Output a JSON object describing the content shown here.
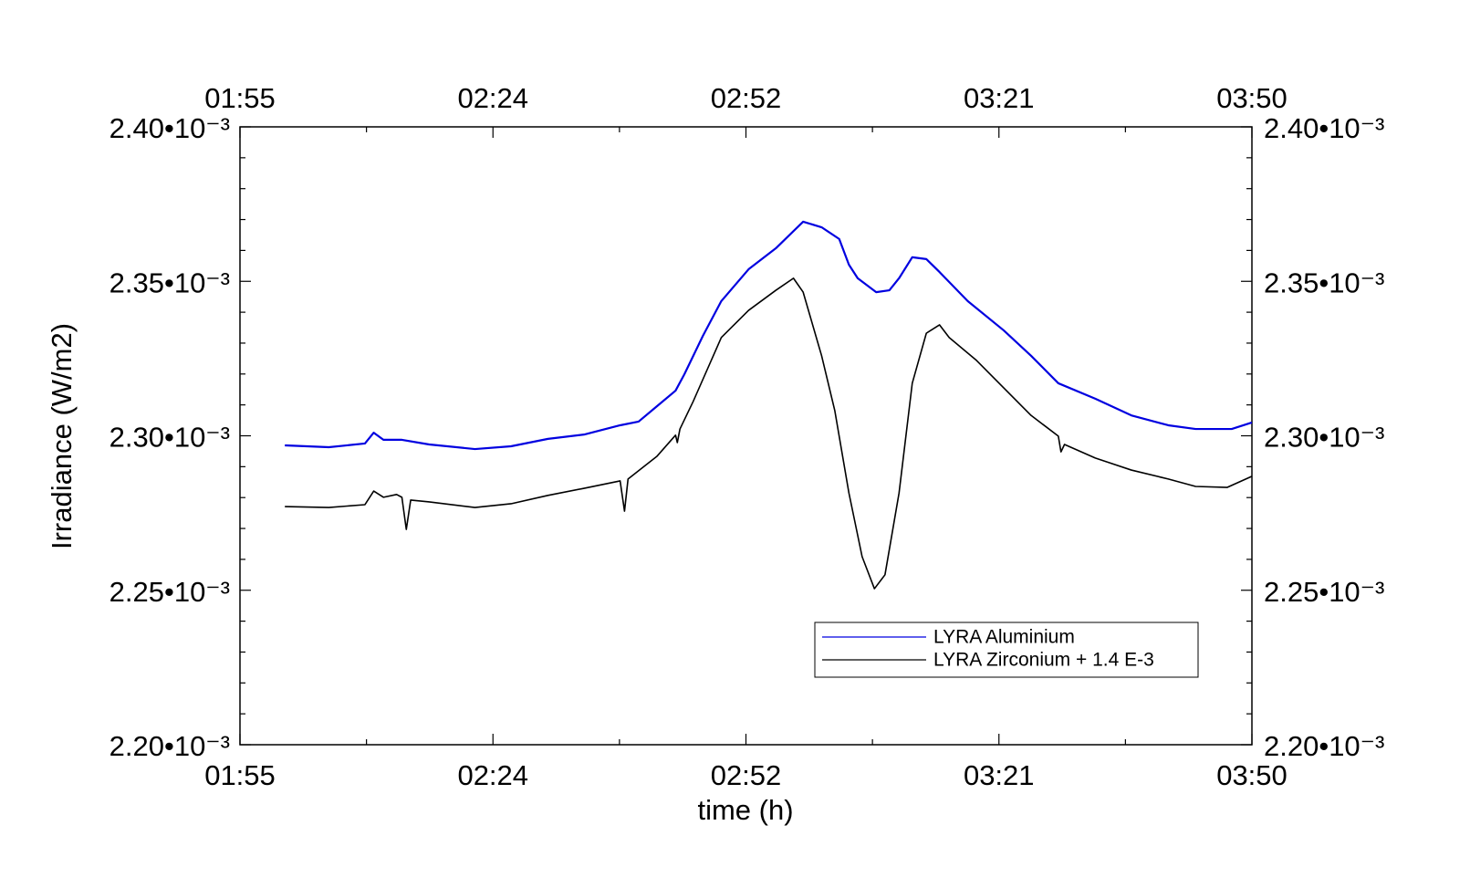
{
  "chart_data": {
    "type": "line",
    "xlabel": "time (h)",
    "ylabel": "Irradiance (W/m2)",
    "xlim": [
      115,
      230
    ],
    "xticks": [
      {
        "value": 115,
        "label": "01:55"
      },
      {
        "value": 143.75,
        "label": "02:24"
      },
      {
        "value": 172.5,
        "label": "02:52"
      },
      {
        "value": 201.25,
        "label": "03:21"
      },
      {
        "value": 230,
        "label": "03:50"
      }
    ],
    "xminorticks": [
      129.375,
      158.125,
      186.875,
      215.625
    ],
    "ylim": [
      0.0022,
      0.0024
    ],
    "yticks": [
      {
        "value": 0.0022,
        "label": "2.20•10⁻³"
      },
      {
        "value": 0.00225,
        "label": "2.25•10⁻³"
      },
      {
        "value": 0.0023,
        "label": "2.30•10⁻³"
      },
      {
        "value": 0.00235,
        "label": "2.35•10⁻³"
      },
      {
        "value": 0.0024,
        "label": "2.40•10⁻³"
      }
    ],
    "yminorticks": [
      0.00221,
      0.00222,
      0.00223,
      0.00224,
      0.00226,
      0.00227,
      0.00228,
      0.00229,
      0.00231,
      0.00232,
      0.00233,
      0.00234,
      0.00236,
      0.00237,
      0.00238,
      0.00239
    ],
    "grid": false,
    "legend": "lower right",
    "series": [
      {
        "name": "LYRA Aluminium",
        "color": "#0000e0",
        "x": [
          120.1,
          125.1,
          129.2,
          130.2,
          131.3,
          133.4,
          136.5,
          141.7,
          145.8,
          150.0,
          154.1,
          158.2,
          160.3,
          162.4,
          164.5,
          165.5,
          167.6,
          169.7,
          172.8,
          175.9,
          179.0,
          181.1,
          183.1,
          184.2,
          185.2,
          187.3,
          188.8,
          189.9,
          191.4,
          193.0,
          194.5,
          197.7,
          201.8,
          204.9,
          208.0,
          212.2,
          216.3,
          220.5,
          223.6,
          227.7,
          230.0
        ],
        "values": [
          0.0022969,
          0.0022963,
          0.0022975,
          0.002301,
          0.0022987,
          0.0022987,
          0.0022972,
          0.0022957,
          0.0022966,
          0.002299,
          0.0023004,
          0.0023034,
          0.0023046,
          0.0023096,
          0.0023146,
          0.0023199,
          0.0023323,
          0.0023436,
          0.0023539,
          0.0023607,
          0.0023693,
          0.0023675,
          0.0023637,
          0.0023554,
          0.002351,
          0.0023465,
          0.0023471,
          0.002351,
          0.0023578,
          0.0023572,
          0.002353,
          0.0023436,
          0.0023341,
          0.0023259,
          0.002317,
          0.002312,
          0.0023066,
          0.0023034,
          0.0023022,
          0.0023022,
          0.0023043
        ]
      },
      {
        "name": "LYRA Zirconium + 1.4 E-3",
        "color": "#000000",
        "x": [
          120.1,
          125.1,
          129.2,
          130.2,
          131.3,
          132.8,
          133.4,
          133.9,
          134.4,
          136.5,
          141.7,
          145.8,
          150.0,
          154.1,
          158.2,
          158.7,
          159.1,
          162.4,
          164.5,
          164.7,
          165.0,
          166.5,
          169.7,
          172.8,
          175.9,
          177.9,
          179.0,
          181.1,
          182.6,
          184.2,
          185.7,
          187.1,
          188.3,
          189.9,
          191.4,
          193.0,
          194.5,
          195.6,
          198.7,
          201.8,
          204.9,
          208.0,
          208.3,
          208.7,
          212.2,
          216.3,
          220.5,
          223.6,
          227.2,
          230.0
        ],
        "values": [
          0.0022771,
          0.0022768,
          0.0022777,
          0.0022821,
          0.0022801,
          0.002281,
          0.0022801,
          0.0022697,
          0.0022792,
          0.0022786,
          0.0022768,
          0.002278,
          0.0022807,
          0.002283,
          0.0022854,
          0.0022756,
          0.002286,
          0.0022934,
          0.0023002,
          0.0022978,
          0.0023022,
          0.0023111,
          0.0023318,
          0.0023406,
          0.0023471,
          0.002351,
          0.0023465,
          0.0023259,
          0.0023081,
          0.0022815,
          0.0022609,
          0.0022505,
          0.002255,
          0.0022815,
          0.002317,
          0.0023332,
          0.0023359,
          0.0023318,
          0.0023244,
          0.0023155,
          0.0023066,
          0.0022999,
          0.0022948,
          0.0022972,
          0.0022928,
          0.0022889,
          0.002286,
          0.0022836,
          0.0022833,
          0.0022869
        ]
      }
    ]
  }
}
